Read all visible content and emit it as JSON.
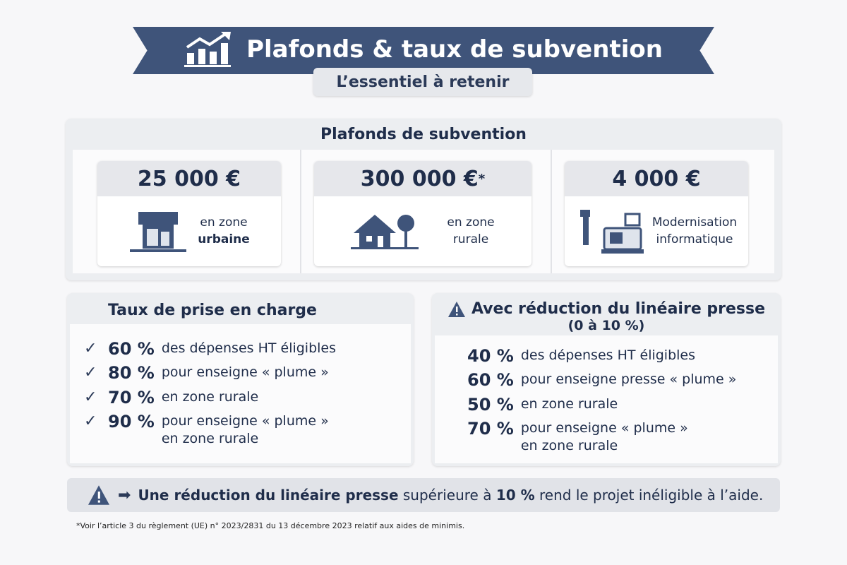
{
  "header": {
    "title": "Plafonds & taux de subvention",
    "subtitle": "L’essentiel à retenir",
    "icon": "chart-growth-icon"
  },
  "ceilings": {
    "title": "Plafonds de subvention",
    "cards": [
      {
        "amount": "25 000 €",
        "label_line1": "en zone",
        "label_line2": "urbaine",
        "icon": "shop-icon"
      },
      {
        "amount": "300 000 €",
        "asterisk": "*",
        "label_line1": "en zone",
        "label_line2": "rurale",
        "icon": "house-tree-icon"
      },
      {
        "amount": "4 000 €",
        "label_line1": "Modernisation",
        "label_line2": "informatique",
        "icon": "cash-register-scanner-icon"
      }
    ]
  },
  "rates": {
    "title": "Taux de prise en charge",
    "items": [
      {
        "pct": "60 %",
        "text": "des dépenses HT éligibles"
      },
      {
        "pct": "80 %",
        "text": "pour enseigne « plume »"
      },
      {
        "pct": "70 %",
        "text": "en zone rurale"
      },
      {
        "pct": "90 %",
        "text": "pour enseigne « plume »",
        "text2": "en zone rurale"
      }
    ]
  },
  "reduced": {
    "title": "Avec réduction du linéaire presse",
    "subtitle": "(0 à 10 %)",
    "items": [
      {
        "pct": "40 %",
        "text": "des dépenses HT éligibles"
      },
      {
        "pct": "60 %",
        "text": "pour enseigne presse « plume »"
      },
      {
        "pct": "50 %",
        "text": "en zone rurale"
      },
      {
        "pct": "70 %",
        "text": "pour enseigne « plume »",
        "text2": "en zone rurale"
      }
    ]
  },
  "warning": {
    "bold": "Une réduction du linéaire presse",
    "rest1": " supérieure à ",
    "bold2": "10 %",
    "rest2": " rend le projet inéligible à l’aide."
  },
  "footnote": "*Voir l’article 3 du règlement (UE) n° 2023/2831 du 13 décembre 2023 relatif aux aides de minimis.",
  "colors": {
    "navy": "#3f547a",
    "text": "#1f2d4a",
    "panel": "#eceef1"
  }
}
